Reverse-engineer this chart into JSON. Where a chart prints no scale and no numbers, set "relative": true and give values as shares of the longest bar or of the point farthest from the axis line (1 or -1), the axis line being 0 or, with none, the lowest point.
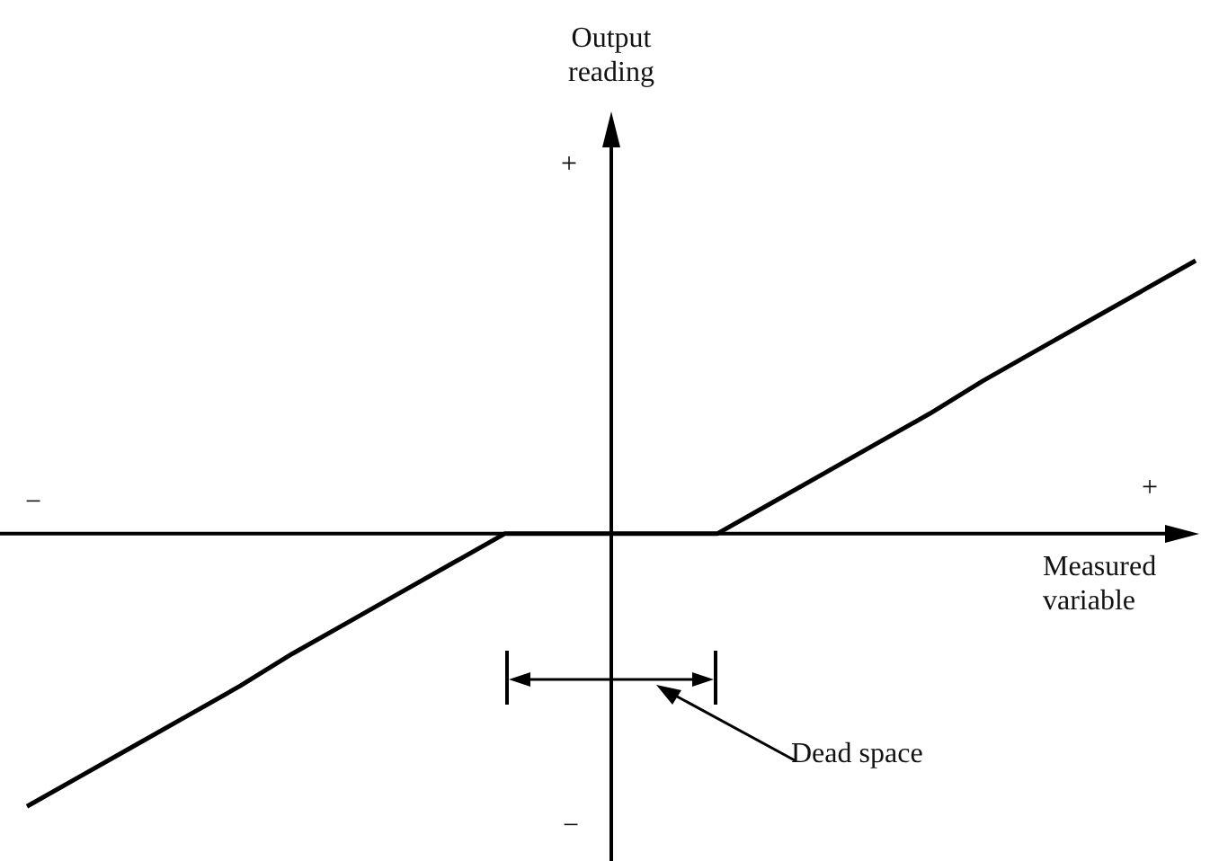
{
  "chart_data": {
    "type": "line",
    "relative": true,
    "xlabel": "Measured variable",
    "annotations": [
      "+",
      "−",
      "−",
      "+",
      "Dead space",
      "Output reading"
    ],
    "categories": [
      null,
      null,
      null,
      null,
      null,
      null,
      null,
      null,
      null,
      null,
      null,
      null,
      null,
      null,
      null,
      null,
      null,
      null,
      null,
      null,
      null,
      null,
      null
    ],
    "values": [
      -1,
      -0.89,
      -0.78,
      -0.67,
      -0.56,
      -0.44,
      -0.33,
      -0.22,
      -0.11,
      0,
      0,
      0,
      0,
      0,
      0.11,
      0.22,
      0.33,
      0.44,
      0.56,
      0.67,
      0.78,
      0.89,
      1
    ],
    "color": "#000000",
    "marker": "none",
    "legend": false,
    "grid": false
  }
}
